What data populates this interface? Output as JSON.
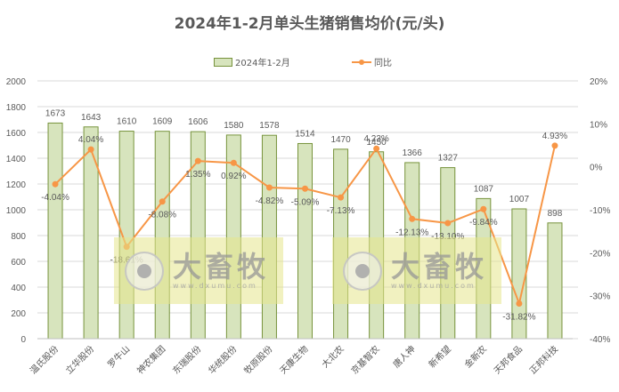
{
  "title": "2024年1-2月单头生猪销售均价(元/头)",
  "legend": {
    "bar_label": "2024年1-2月",
    "line_label": "同比"
  },
  "watermark": {
    "brand": "大畜牧",
    "url": "www.dxumu.com"
  },
  "colors": {
    "bar_fill": "#d7e4bd",
    "bar_border": "#77933c",
    "line": "#f79646",
    "grid": "#d9d9d9",
    "text": "#595959"
  },
  "chart_data": {
    "type": "bar",
    "title": "2024年1-2月单头生猪销售均价(元/头)",
    "categories": [
      "温氏股份",
      "立华股份",
      "罗牛山",
      "神农集团",
      "东瑞股份",
      "华统股份",
      "牧原股份",
      "天康生物",
      "大北农",
      "京基智农",
      "唐人神",
      "新希望",
      "金新农",
      "天邦食品",
      "正邦科技"
    ],
    "series": [
      {
        "name": "2024年1-2月",
        "type": "bar",
        "axis": "left",
        "values": [
          1673,
          1643,
          1610,
          1609,
          1606,
          1580,
          1578,
          1514,
          1470,
          1450,
          1366,
          1327,
          1087,
          1007,
          898
        ]
      },
      {
        "name": "同比",
        "type": "line",
        "axis": "right",
        "values": [
          -4.04,
          4.04,
          -18.61,
          -8.08,
          1.35,
          0.92,
          -4.82,
          -5.09,
          -7.13,
          4.23,
          -12.13,
          -13.1,
          -9.84,
          -31.82,
          4.93
        ],
        "labels": [
          "-4.04%",
          "4.04%",
          "-18.61%",
          "-8.08%",
          "1.35%",
          "0.92%",
          "-4.82%",
          "-5.09%",
          "-7.13%",
          "4.23%",
          "-12.13%",
          "-13.10%",
          "-9.84%",
          "-31.82%",
          "4.93%"
        ]
      }
    ],
    "left_axis": {
      "ylim": [
        0,
        2000
      ],
      "ticks": [
        "0",
        "200",
        "400",
        "600",
        "800",
        "1000",
        "1200",
        "1400",
        "1600",
        "1800",
        "2000"
      ]
    },
    "right_axis": {
      "ylim": [
        -40,
        20
      ],
      "ticks": [
        "-40%",
        "-30%",
        "-20%",
        "-10%",
        "0%",
        "10%",
        "20%"
      ]
    },
    "xlabel": "",
    "ylabel": "",
    "grid": true,
    "legend_position": "top"
  }
}
